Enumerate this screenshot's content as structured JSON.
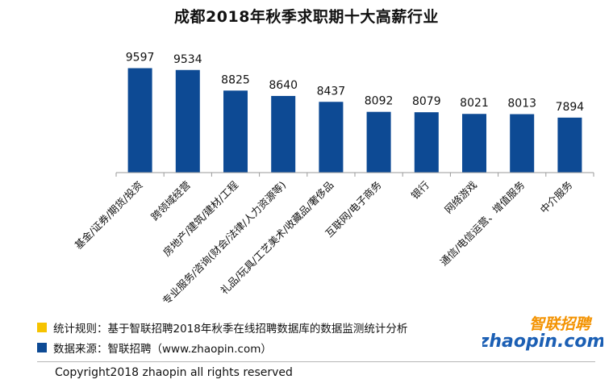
{
  "chart_data": {
    "type": "bar",
    "title": "成都2018年秋季求职期十大高薪行业",
    "categories": [
      "基金/证券/期货/投资",
      "跨领域经营",
      "房地产/建筑/建材/工程",
      "专业服务/咨询(财会/法律/人力资源等)",
      "礼品/玩具/工艺美术/收藏品/奢侈品",
      "互联网/电子商务",
      "银行",
      "网络游戏",
      "通信/电信运营、增值服务",
      "中介服务"
    ],
    "values": [
      9597,
      9534,
      8825,
      8640,
      8437,
      8092,
      8079,
      8021,
      8013,
      7894
    ],
    "xlabel": "",
    "ylabel": "",
    "ylim": [
      6000,
      10000
    ],
    "grid": false,
    "colors": {
      "bar": "#0d4a94"
    }
  },
  "notes": [
    {
      "color": "#f6c300",
      "text": "统计规则：基于智联招聘2018年秋季在线招聘数据库的数据监测统计分析"
    },
    {
      "color": "#0d4a94",
      "text": "数据来源：智联招聘（www.zhaopin.com）"
    }
  ],
  "copyright": "Copyright2018 zhaopin all rights reserved",
  "logo": {
    "top_text": "智联招聘",
    "bottom_text": "zhaopin.com",
    "colors": {
      "blue": "#1b5fb4",
      "orange": "#f39200"
    }
  }
}
